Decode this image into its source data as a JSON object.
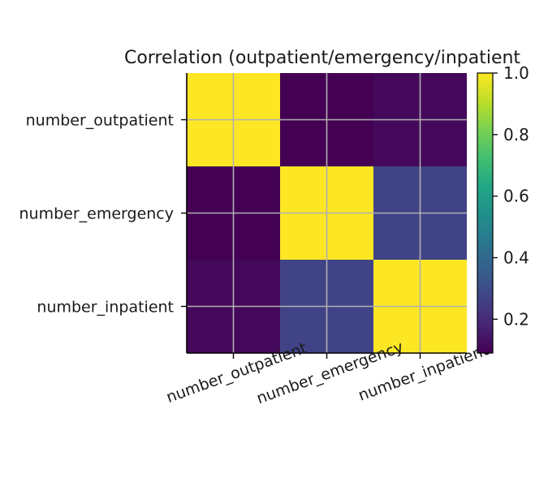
{
  "chart_data": {
    "type": "heatmap",
    "title": "Correlation (outpatient/emergency/inpatient",
    "xlabel": "",
    "ylabel": "",
    "x_categories": [
      "number_outpatient",
      "number_emergency",
      "number_inpatient"
    ],
    "y_categories": [
      "number_outpatient",
      "number_emergency",
      "number_inpatient"
    ],
    "values": [
      [
        1.0,
        0.09,
        0.11
      ],
      [
        0.09,
        1.0,
        0.27
      ],
      [
        0.11,
        0.27,
        1.0
      ]
    ],
    "colormap": "viridis",
    "color_range": [
      0.09,
      1.0
    ],
    "colorbar_ticks": [
      0.2,
      0.4,
      0.6,
      0.8,
      1.0
    ],
    "colorbar_tick_labels": [
      "0.2",
      "0.4",
      "0.6",
      "0.8",
      "1.0"
    ],
    "grid": true,
    "legend": "colorbar-right"
  }
}
